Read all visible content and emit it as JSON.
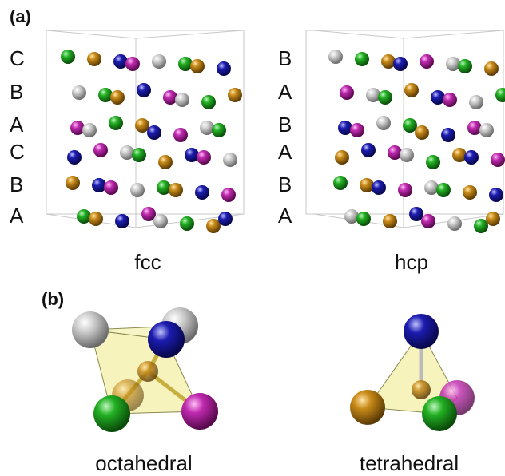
{
  "panel_a": {
    "label": "(a)",
    "fcc": {
      "layers": [
        "C",
        "B",
        "A",
        "C",
        "B",
        "A"
      ],
      "caption": "fcc"
    },
    "hcp": {
      "layers": [
        "B",
        "A",
        "B",
        "A",
        "B",
        "A"
      ],
      "caption": "hcp"
    }
  },
  "panel_b": {
    "label": "(b)",
    "octahedral": {
      "caption": "octahedral"
    },
    "tetrahedral": {
      "caption": "tetrahedral"
    }
  }
}
